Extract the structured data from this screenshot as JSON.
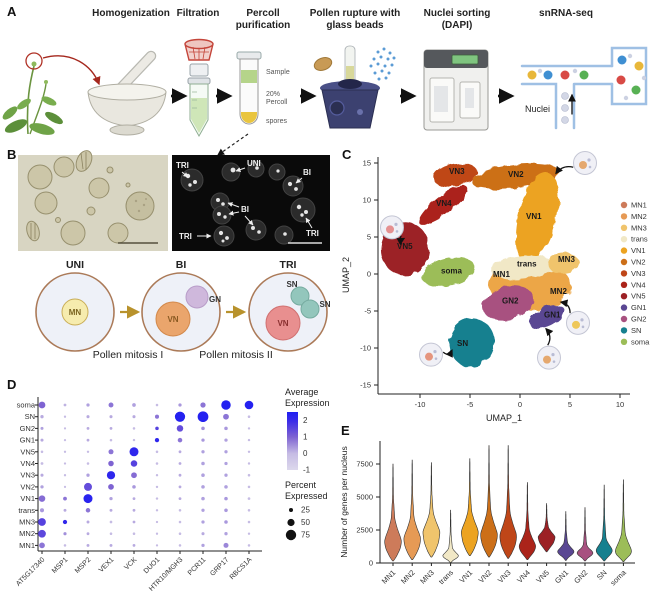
{
  "colors": {
    "MN1": "#cd7b5a",
    "MN2": "#e69a55",
    "MN3": "#f0c46c",
    "trans": "#f1e8c6",
    "VN1": "#eca321",
    "VN2": "#cc6f18",
    "VN3": "#bf4618",
    "VN4": "#ab241a",
    "VN5": "#9c2125",
    "GN1": "#5a4793",
    "GN2": "#a85180",
    "SN": "#16808f",
    "soma": "#9cbd58",
    "dot_low": "#dcd8ec",
    "dot_mid": "#7e63d2",
    "dot_high": "#2222f2"
  },
  "panelA": {
    "label": "A",
    "steps": [
      "Homogenization",
      "Filtration",
      "Percoll\npurification",
      "Pollen rupture with\nglass beads",
      "Nuclei sorting\n(DAPI)",
      "snRNA-seq"
    ],
    "tube": {
      "sample": "Sample",
      "percoll_l1": "20%",
      "percoll_l2": "Percoll",
      "spores": "spores"
    },
    "nuclei_label": "Nuclei"
  },
  "panelB": {
    "label": "B",
    "dapi_annotations": [
      "TRI",
      "UNI",
      "BI",
      "BI",
      "TRI",
      "TRI"
    ],
    "stages": [
      "UNI",
      "BI",
      "TRI"
    ],
    "nuclei": {
      "mn": "MN",
      "vn": "VN",
      "gn": "GN",
      "sn": "SN"
    },
    "captions": [
      "Pollen mitosis I",
      "Pollen mitosis II"
    ]
  },
  "panelC": {
    "label": "C"
  },
  "panelD": {
    "label": "D"
  },
  "panelE": {
    "label": "E"
  },
  "chart_data": [
    {
      "id": "umap",
      "type": "scatter",
      "xlabel": "UMAP_1",
      "ylabel": "UMAP_2",
      "xticks": [
        -10,
        -5,
        0,
        5,
        10
      ],
      "yticks": [
        15,
        10,
        5,
        0,
        -5,
        -10,
        -15
      ],
      "xlim": [
        -14.5,
        12
      ],
      "ylim": [
        -16.2,
        15.6
      ],
      "legend_position": "right",
      "legend": [
        "MN1",
        "MN2",
        "MN3",
        "trans",
        "VN1",
        "VN2",
        "VN3",
        "VN4",
        "VN5",
        "GN1",
        "GN2",
        "SN",
        "soma"
      ],
      "clusters": [
        {
          "name": "VN5",
          "color": "#9c2125",
          "cx": -11.5,
          "cy": 3.4,
          "rx": 2.4,
          "ry": 3.6,
          "rot": 8
        },
        {
          "name": "VN4",
          "color": "#ab241a",
          "cx": -7.7,
          "cy": 9.3,
          "rx": 3.0,
          "ry": 1.2,
          "rot": -38
        },
        {
          "name": "VN3",
          "color": "#bf4618",
          "cx": -6.5,
          "cy": 13.4,
          "rx": 2.2,
          "ry": 1.5,
          "rot": -12
        },
        {
          "name": "VN2",
          "color": "#cc6f18",
          "cx": -0.5,
          "cy": 13.2,
          "rx": 4.4,
          "ry": 1.6,
          "rot": -7
        },
        {
          "name": "VN1",
          "color": "#eca321",
          "cx": 1.7,
          "cy": 7.6,
          "rx": 1.9,
          "ry": 6.2,
          "rot": 14
        },
        {
          "name": "MN",
          "color": "#eca647",
          "cx": 1.0,
          "cy": -1.6,
          "rx": 4.1,
          "ry": 3.3,
          "rot": 0
        },
        {
          "name": "trans",
          "color": "#f1e8c6",
          "cx": 0.3,
          "cy": 0.9,
          "rx": 3.2,
          "ry": 1.5,
          "rot": -6
        },
        {
          "name": "MN3",
          "color": "#f0c46c",
          "cx": 4.3,
          "cy": 1.5,
          "rx": 1.6,
          "ry": 1.4,
          "rot": 0
        },
        {
          "name": "soma",
          "color": "#9cbd58",
          "cx": -7.2,
          "cy": 0.3,
          "rx": 2.7,
          "ry": 1.8,
          "rot": -14
        },
        {
          "name": "GN2",
          "color": "#a85180",
          "cx": -1.2,
          "cy": -3.9,
          "rx": 2.6,
          "ry": 2.3,
          "rot": -15
        },
        {
          "name": "GN1",
          "color": "#5a4793",
          "cx": 2.7,
          "cy": -5.8,
          "rx": 1.9,
          "ry": 1.3,
          "rot": -25
        },
        {
          "name": "SN",
          "color": "#16808f",
          "cx": -4.8,
          "cy": -9.3,
          "rx": 2.3,
          "ry": 3.3,
          "rot": 6
        }
      ],
      "labels": [
        {
          "text": "VN3",
          "x": -7.1,
          "y": 13.5
        },
        {
          "text": "VN2",
          "x": -1.2,
          "y": 13.1
        },
        {
          "text": "VN1",
          "x": 0.6,
          "y": 7.4
        },
        {
          "text": "VN4",
          "x": -8.4,
          "y": 9.2
        },
        {
          "text": "VN5",
          "x": -12.3,
          "y": 3.4
        },
        {
          "text": "soma",
          "x": -7.9,
          "y": 0.1
        },
        {
          "text": "trans",
          "x": -0.3,
          "y": 1.0
        },
        {
          "text": "MN1",
          "x": -2.7,
          "y": -0.4
        },
        {
          "text": "MN3",
          "x": 3.8,
          "y": 1.6
        },
        {
          "text": "MN2",
          "x": 3.0,
          "y": -2.7
        },
        {
          "text": "GN2",
          "x": -1.8,
          "y": -4.0
        },
        {
          "text": "GN1",
          "x": 2.4,
          "y": -5.9
        },
        {
          "text": "SN",
          "x": -6.3,
          "y": -9.7
        }
      ],
      "insets": [
        {
          "x": 6.5,
          "y": 15.0,
          "nucleus": "#e5a86e",
          "ax": 3.6,
          "ay": 13.6
        },
        {
          "x": -12.8,
          "y": 6.3,
          "nucleus": "#e59090",
          "ax": -11.6,
          "ay": 4.8
        },
        {
          "x": -8.9,
          "y": -10.9,
          "nucleus": "#e5957e",
          "ax": -6.8,
          "ay": -10.3
        },
        {
          "x": 2.9,
          "y": -11.3,
          "nucleus": "#e5a86e",
          "ax": 2.6,
          "ay": -7.4
        },
        {
          "x": 5.8,
          "y": -6.6,
          "nucleus": "#eec75a",
          "ax": 4.1,
          "ay": -3.8
        }
      ]
    },
    {
      "id": "dotplot",
      "type": "dotplot",
      "rows": [
        "soma",
        "SN",
        "GN2",
        "GN1",
        "VN5",
        "VN4",
        "VN3",
        "VN2",
        "VN1",
        "trans",
        "MN3",
        "MN2",
        "MN1"
      ],
      "genes": [
        "AT5G17340",
        "MSP1",
        "MSP2",
        "VEX1",
        "VCK",
        "DUO1",
        "HTR10/MGH3",
        "PCR11",
        "GRP17",
        "RBCS1A"
      ],
      "percent": [
        [
          40,
          8,
          12,
          25,
          15,
          6,
          12,
          28,
          62,
          55
        ],
        [
          12,
          4,
          10,
          10,
          10,
          18,
          68,
          72,
          32,
          6
        ],
        [
          10,
          3,
          8,
          8,
          6,
          14,
          38,
          14,
          14,
          5
        ],
        [
          10,
          3,
          8,
          6,
          5,
          20,
          22,
          12,
          12,
          5
        ],
        [
          6,
          4,
          5,
          26,
          58,
          6,
          8,
          12,
          12,
          5
        ],
        [
          8,
          4,
          6,
          30,
          38,
          6,
          8,
          14,
          12,
          5
        ],
        [
          10,
          4,
          12,
          52,
          32,
          5,
          8,
          14,
          12,
          6
        ],
        [
          12,
          3,
          50,
          32,
          14,
          5,
          8,
          14,
          14,
          6
        ],
        [
          38,
          16,
          58,
          12,
          8,
          5,
          8,
          14,
          14,
          7
        ],
        [
          18,
          9,
          22,
          9,
          8,
          5,
          6,
          12,
          14,
          6
        ],
        [
          48,
          20,
          9,
          7,
          8,
          4,
          6,
          12,
          14,
          6
        ],
        [
          48,
          11,
          8,
          6,
          6,
          4,
          6,
          10,
          12,
          5
        ],
        [
          32,
          6,
          9,
          9,
          8,
          4,
          6,
          12,
          26,
          6
        ]
      ],
      "expression": [
        [
          1,
          0.1,
          0.3,
          0.8,
          0.3,
          0,
          0.4,
          0.8,
          2.5,
          2.5
        ],
        [
          0.2,
          0,
          0.2,
          0.2,
          0.2,
          0.8,
          2.5,
          2.5,
          0.8,
          0
        ],
        [
          0.3,
          0,
          0.2,
          0.2,
          0,
          1.6,
          1.4,
          0.5,
          0.4,
          0
        ],
        [
          0.2,
          0,
          0.2,
          0,
          0,
          2.3,
          0.8,
          0.4,
          0.3,
          0
        ],
        [
          0,
          0,
          0,
          0.8,
          2.3,
          0,
          0.2,
          0.3,
          0.3,
          0
        ],
        [
          0,
          0,
          0,
          1,
          1.6,
          0,
          0.2,
          0.3,
          0.3,
          0
        ],
        [
          0.2,
          0,
          0.3,
          2.3,
          0.9,
          0,
          0.2,
          0.3,
          0.3,
          0
        ],
        [
          0.3,
          0,
          1.4,
          1,
          0.4,
          0,
          0.2,
          0.3,
          0.3,
          0
        ],
        [
          0.9,
          0.8,
          2.4,
          0.3,
          0.2,
          0,
          0.2,
          0.3,
          0.4,
          0
        ],
        [
          0.4,
          0.2,
          0.8,
          0.2,
          0.2,
          0,
          0,
          0.3,
          0.4,
          0
        ],
        [
          1.6,
          2.2,
          0.2,
          0,
          0.2,
          0,
          0,
          0.3,
          0.4,
          0
        ],
        [
          1.5,
          0.5,
          0.2,
          0,
          0,
          0,
          0,
          0.2,
          0.3,
          0
        ],
        [
          0.8,
          0,
          0.2,
          0.2,
          0.2,
          0,
          0,
          0.3,
          0.6,
          0
        ]
      ],
      "color_scale": {
        "title_lines": [
          "Average",
          "Expression"
        ],
        "ticks": [
          2,
          1,
          0,
          -1
        ]
      },
      "size_scale": {
        "title_lines": [
          "Percent",
          "Expressed"
        ],
        "ticks": [
          25,
          50,
          75
        ]
      }
    },
    {
      "id": "violin",
      "type": "violin",
      "ylabel": "Number of genes per nucleus",
      "ylim": [
        0,
        9200
      ],
      "yticks": [
        0,
        2500,
        5000,
        7500
      ],
      "categories": [
        "MN1",
        "MN2",
        "MN3",
        "trans",
        "VN1",
        "VN2",
        "VN3",
        "VN4",
        "VN5",
        "GN1",
        "GN2",
        "SN",
        "soma"
      ],
      "stats": [
        {
          "min": 400,
          "peak": 1700,
          "q3": 3300,
          "max": 7500
        },
        {
          "min": 500,
          "peak": 1900,
          "q3": 3400,
          "max": 7800
        },
        {
          "min": 700,
          "peak": 2400,
          "q3": 3800,
          "max": 7600
        },
        {
          "min": 250,
          "peak": 550,
          "q3": 1100,
          "max": 4000
        },
        {
          "min": 800,
          "peak": 2400,
          "q3": 3900,
          "max": 7900
        },
        {
          "min": 700,
          "peak": 2200,
          "q3": 3900,
          "max": 8900
        },
        {
          "min": 600,
          "peak": 2100,
          "q3": 3800,
          "max": 8900
        },
        {
          "min": 500,
          "peak": 1300,
          "q3": 2500,
          "max": 6100
        },
        {
          "min": 1100,
          "peak": 2000,
          "q3": 2700,
          "max": 4500
        },
        {
          "min": 450,
          "peak": 900,
          "q3": 1500,
          "max": 3900
        },
        {
          "min": 400,
          "peak": 800,
          "q3": 1300,
          "max": 4200
        },
        {
          "min": 400,
          "peak": 1000,
          "q3": 1800,
          "max": 5900
        },
        {
          "min": 350,
          "peak": 900,
          "q3": 2200,
          "max": 6300
        }
      ]
    }
  ]
}
